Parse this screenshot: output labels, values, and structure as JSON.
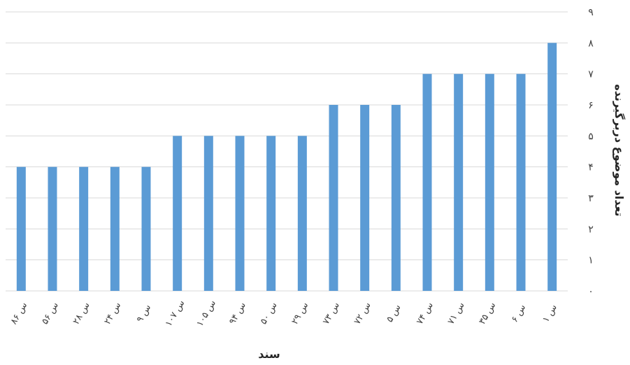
{
  "chart_data": {
    "type": "bar",
    "categories": [
      "س ۱",
      "س ۶",
      "س ۳۵",
      "س ۷۱",
      "س ۷۴",
      "س ۵",
      "س ۷۲",
      "س ۷۳",
      "س ۲۹",
      "س ۵۰",
      "س ۹۴",
      "س ۱۰۵",
      "س ۱۰۷",
      "س ۹",
      "س ۲۴",
      "س ۲۸",
      "س ۵۶",
      "س ۸۶"
    ],
    "values": [
      8,
      7,
      7,
      7,
      7,
      6,
      6,
      6,
      5,
      5,
      5,
      5,
      5,
      4,
      4,
      4,
      4,
      4
    ],
    "ylim": [
      0,
      9
    ],
    "yticks": [
      "۰",
      "۱",
      "۲",
      "۳",
      "۴",
      "۵",
      "۶",
      "۷",
      "۸",
      "۹"
    ],
    "xlabel": "سند",
    "ylabel": "تعداد موضوع دربرگیرنده",
    "x_direction": "right-to-left",
    "grid": true,
    "color": "#5b9bd5"
  }
}
